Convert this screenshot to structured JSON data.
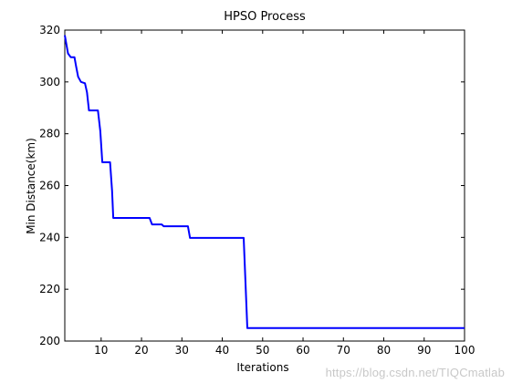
{
  "chart_data": {
    "type": "line",
    "title": "HPSO Process",
    "xlabel": "Iterations",
    "ylabel": "Min Distance(km)",
    "xlim": [
      1,
      100
    ],
    "ylim": [
      200,
      320
    ],
    "xticks": [
      10,
      20,
      30,
      40,
      50,
      60,
      70,
      80,
      90,
      100
    ],
    "yticks": [
      200,
      220,
      240,
      260,
      280,
      300,
      320
    ],
    "grid": false,
    "legend": "none",
    "series": [
      {
        "color": "#0000ff",
        "points": [
          [
            1,
            318
          ],
          [
            1.8,
            311
          ],
          [
            2.5,
            309.5
          ],
          [
            3.4,
            309.5
          ],
          [
            3.8,
            306
          ],
          [
            4.3,
            302
          ],
          [
            5,
            300
          ],
          [
            6,
            299.5
          ],
          [
            6.5,
            296
          ],
          [
            7,
            289
          ],
          [
            9.2,
            289
          ],
          [
            9.8,
            281
          ],
          [
            10.3,
            269
          ],
          [
            12.2,
            269
          ],
          [
            12.7,
            258
          ],
          [
            13,
            247.5
          ],
          [
            22,
            247.5
          ],
          [
            22.6,
            245
          ],
          [
            25,
            245
          ],
          [
            25.5,
            244.3
          ],
          [
            31.5,
            244.3
          ],
          [
            32,
            239.8
          ],
          [
            45.3,
            239.8
          ],
          [
            46.2,
            205
          ],
          [
            100,
            205
          ]
        ]
      }
    ]
  },
  "watermark": "https://blog.csdn.net/TIQCmatlab",
  "colors": {
    "line": "#0000ff",
    "axes": "#000000",
    "background": "#ffffff"
  }
}
